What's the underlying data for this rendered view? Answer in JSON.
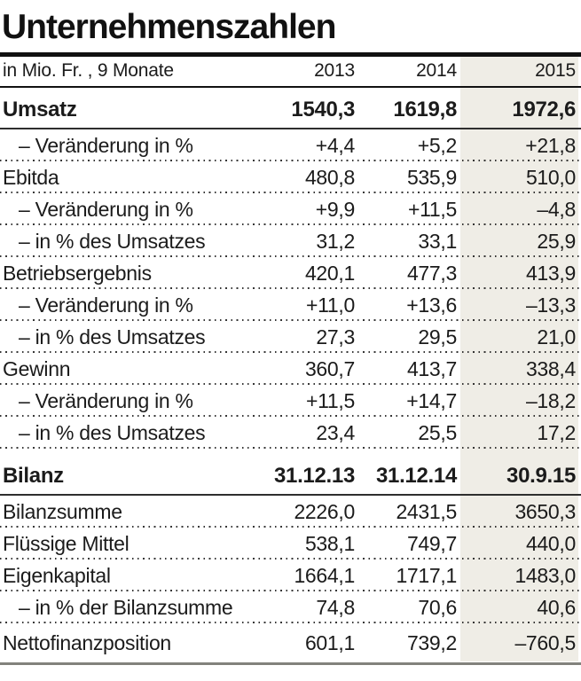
{
  "title": "Unternehmenszahlen",
  "chart_data": {
    "type": "table",
    "title": "Unternehmenszahlen",
    "header": {
      "label": "in Mio. Fr. , 9 Monate",
      "columns": [
        "2013",
        "2014",
        "2015"
      ]
    },
    "highlight_column": "2015",
    "rows": [
      {
        "label": "Umsatz",
        "values": [
          "1540,3",
          "1619,8",
          "1972,6"
        ],
        "style": "bold"
      },
      {
        "label": "– Veränderung in %",
        "values": [
          "+4,4",
          "+5,2",
          "+21,8"
        ],
        "style": "indent"
      },
      {
        "label": "Ebitda",
        "values": [
          "480,8",
          "535,9",
          "510,0"
        ],
        "style": "plain"
      },
      {
        "label": "– Veränderung in %",
        "values": [
          "+9,9",
          "+11,5",
          "–4,8"
        ],
        "style": "indent"
      },
      {
        "label": "– in % des Umsatzes",
        "values": [
          "31,2",
          "33,1",
          "25,9"
        ],
        "style": "indent"
      },
      {
        "label": "Betriebsergebnis",
        "values": [
          "420,1",
          "477,3",
          "413,9"
        ],
        "style": "plain"
      },
      {
        "label": "– Veränderung in %",
        "values": [
          "+11,0",
          "+13,6",
          "–13,3"
        ],
        "style": "indent"
      },
      {
        "label": "– in % des Umsatzes",
        "values": [
          "27,3",
          "29,5",
          "21,0"
        ],
        "style": "indent"
      },
      {
        "label": "Gewinn",
        "values": [
          "360,7",
          "413,7",
          "338,4"
        ],
        "style": "plain"
      },
      {
        "label": "– Veränderung in %",
        "values": [
          "+11,5",
          "+14,7",
          "–18,2"
        ],
        "style": "indent"
      },
      {
        "label": "– in % des Umsatzes",
        "values": [
          "23,4",
          "25,5",
          "17,2"
        ],
        "style": "indent"
      },
      {
        "label": "Bilanz",
        "values": [
          "31.12.13",
          "31.12.14",
          "30.9.15"
        ],
        "style": "bold",
        "section_gap": true
      },
      {
        "label": "Bilanzsumme",
        "values": [
          "2226,0",
          "2431,5",
          "3650,3"
        ],
        "style": "plain"
      },
      {
        "label": "Flüssige Mittel",
        "values": [
          "538,1",
          "749,7",
          "440,0"
        ],
        "style": "plain"
      },
      {
        "label": "Eigenkapital",
        "values": [
          "1664,1",
          "1717,1",
          "1483,0"
        ],
        "style": "plain"
      },
      {
        "label": "– in % der Bilanzsumme",
        "values": [
          "74,8",
          "70,6",
          "40,6"
        ],
        "style": "indent"
      },
      {
        "label": "Nettofinanzposition",
        "values": [
          "601,1",
          "739,2",
          "–760,5"
        ],
        "style": "plain"
      }
    ]
  },
  "colors": {
    "highlight_bg": "#efede6",
    "rule_dark": "#111111",
    "rule_bottom": "#82827c",
    "text": "#1b1b1b"
  }
}
